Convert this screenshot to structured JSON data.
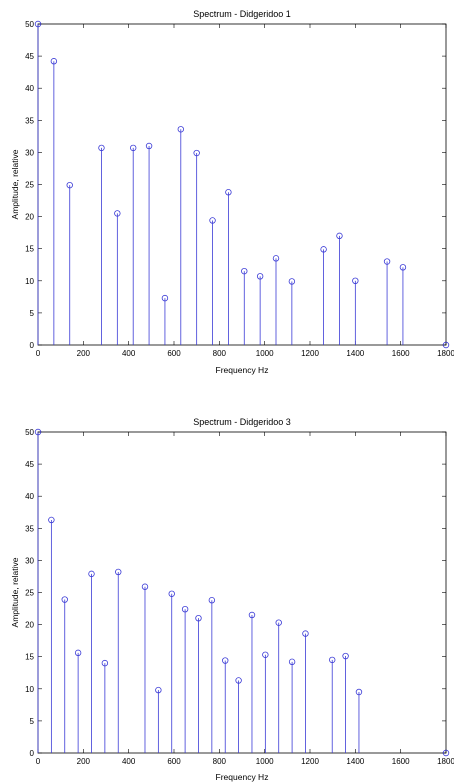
{
  "chart_data": [
    {
      "type": "stem",
      "title": "Spectrum - Didgeridoo 1",
      "xlabel": "Frequency Hz",
      "ylabel": "Amplitude, relative",
      "xlim": [
        0,
        1800
      ],
      "ylim": [
        0,
        50
      ],
      "xticks": [
        0,
        200,
        400,
        600,
        800,
        1000,
        1200,
        1400,
        1600,
        1800
      ],
      "yticks": [
        0,
        5,
        10,
        15,
        20,
        25,
        30,
        35,
        40,
        45,
        50
      ],
      "x": [
        0,
        70,
        140,
        280,
        350,
        420,
        490,
        560,
        630,
        700,
        770,
        840,
        910,
        980,
        1050,
        1120,
        1260,
        1330,
        1400,
        1540,
        1610,
        1800
      ],
      "y": [
        50,
        44.2,
        24.9,
        30.7,
        20.5,
        30.7,
        31,
        7.3,
        33.6,
        29.9,
        19.4,
        23.8,
        11.5,
        10.7,
        13.5,
        9.9,
        14.9,
        17,
        10,
        13,
        12.1,
        0
      ]
    },
    {
      "type": "stem",
      "title": "Spectrum - Didgeridoo 3",
      "xlabel": "Frequency Hz",
      "ylabel": "Amplitude, relative",
      "xlim": [
        0,
        1800
      ],
      "ylim": [
        0,
        50
      ],
      "xticks": [
        0,
        200,
        400,
        600,
        800,
        1000,
        1200,
        1400,
        1600,
        1800
      ],
      "yticks": [
        0,
        5,
        10,
        15,
        20,
        25,
        30,
        35,
        40,
        45,
        50
      ],
      "x": [
        0,
        59,
        118,
        177,
        236,
        295,
        354,
        472,
        531,
        590,
        649,
        708,
        767,
        826,
        885,
        944,
        1003,
        1062,
        1121,
        1180,
        1298,
        1357,
        1416,
        1800
      ],
      "y": [
        50,
        36.3,
        23.9,
        15.6,
        27.9,
        14,
        28.2,
        25.9,
        9.8,
        24.8,
        22.4,
        21,
        23.8,
        14.4,
        11.3,
        21.5,
        15.3,
        20.3,
        14.2,
        18.6,
        14.5,
        15.1,
        9.5,
        0
      ]
    }
  ]
}
